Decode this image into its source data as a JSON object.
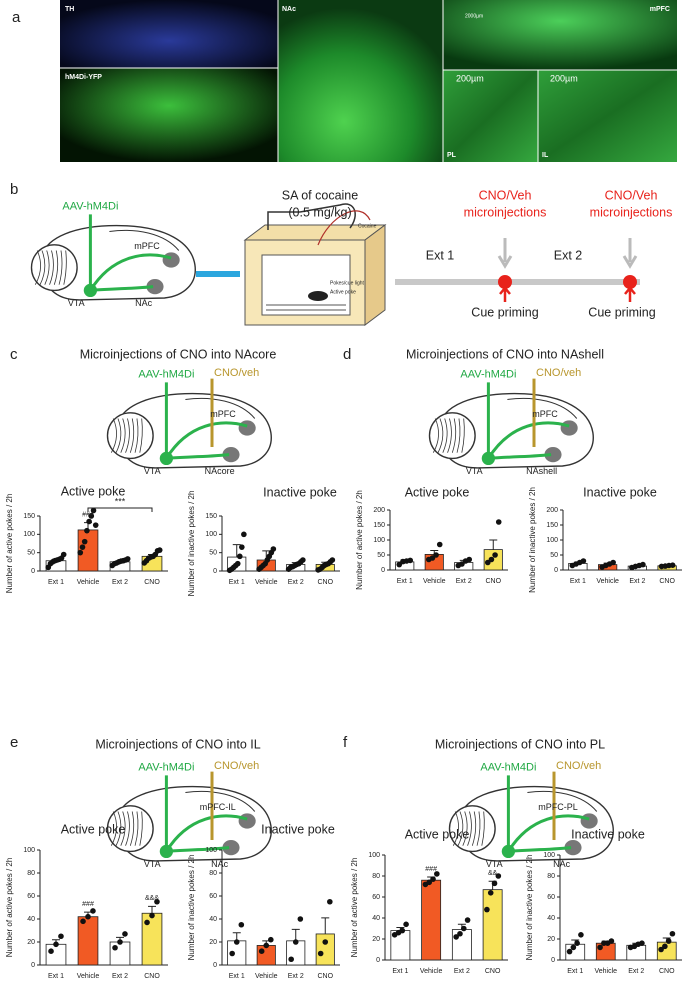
{
  "figure": {
    "panel_labels": [
      "a",
      "b",
      "c",
      "d",
      "e",
      "f"
    ],
    "images": [
      {
        "label": "TH"
      },
      {
        "label": "hM4Di-YFP"
      },
      {
        "label": "NAc"
      },
      {
        "label": "mPFC",
        "scale": "2000µm"
      },
      {
        "label": "PL",
        "scale": "200µm"
      },
      {
        "label": "IL",
        "scale": "200µm"
      }
    ],
    "schematic_b": {
      "virus": "AAV-hM4Di",
      "regions": [
        "mPFC",
        "VTA",
        "NAc"
      ],
      "sa_title": "SA of cocaine",
      "dose": "(0.5 mg/kg)",
      "cocaine": "Cocaine",
      "light": "Pokes/cue light",
      "active": "Active poke",
      "phases": [
        "Ext 1",
        "Ext 2"
      ],
      "injection": [
        "CNO/Veh",
        "microinjections"
      ],
      "cue": "Cue priming"
    },
    "panels": [
      {
        "title": "Microinjections of CNO into NAcore",
        "virus": "AAV-hM4Di",
        "drug": "CNO/veh",
        "regions": [
          "mPFC",
          "VTA",
          "NAcore"
        ]
      },
      {
        "title": "Microinjections of CNO into NAshell",
        "virus": "AAV-hM4Di",
        "drug": "CNO/veh",
        "regions": [
          "mPFC",
          "VTA",
          "NAshell"
        ]
      },
      {
        "title": "Microinjections of CNO into IL",
        "virus": "AAV-hM4Di",
        "drug": "CNO/veh",
        "regions": [
          "mPFC-IL",
          "VTA",
          "NAc"
        ]
      },
      {
        "title": "Microinjections of CNO into PL",
        "virus": "AAV-hM4Di",
        "drug": "CNO/veh",
        "regions": [
          "mPFC-PL",
          "VTA",
          "NAc"
        ]
      }
    ]
  },
  "chart_data": [
    {
      "type": "bar",
      "title": "Active poke",
      "y_label": "Number of active pokes / 2h",
      "categories": [
        "Ext 1",
        "Vehicle",
        "Ext 2",
        "CNO"
      ],
      "values": [
        28,
        112,
        25,
        40
      ],
      "errors": [
        4,
        20,
        2,
        5
      ],
      "colors": [
        "#ffffff",
        "#f15a24",
        "#ffffff",
        "#f7e35a"
      ],
      "points": [
        [
          10,
          20,
          25,
          28,
          30,
          32,
          35,
          45
        ],
        [
          50,
          65,
          80,
          110,
          135,
          150,
          165,
          125
        ],
        [
          15,
          20,
          22,
          25,
          27,
          28,
          30,
          33
        ],
        [
          22,
          28,
          35,
          38,
          40,
          45,
          55,
          57
        ]
      ],
      "annotations": [
        null,
        "###",
        null,
        null
      ],
      "comparison_label": "***",
      "ylim": [
        0,
        150
      ],
      "yticks": [
        0,
        50,
        100,
        150
      ]
    },
    {
      "type": "bar",
      "title": "Inactive poke",
      "y_label": "Number of inactive pokes / 2h",
      "categories": [
        "Ext 1",
        "Vehicle",
        "Ext 2",
        "CNO"
      ],
      "values": [
        38,
        30,
        18,
        18
      ],
      "errors": [
        34,
        25,
        5,
        6
      ],
      "colors": [
        "#ffffff",
        "#f15a24",
        "#ffffff",
        "#f7e35a"
      ],
      "points": [
        [
          2,
          5,
          10,
          15,
          20,
          40,
          65,
          100
        ],
        [
          5,
          10,
          15,
          20,
          30,
          40,
          50,
          60
        ],
        [
          5,
          10,
          12,
          15,
          18,
          20,
          25,
          30
        ],
        [
          3,
          5,
          10,
          15,
          18,
          20,
          25,
          30
        ]
      ],
      "ylim": [
        0,
        150
      ],
      "yticks": [
        0,
        50,
        100,
        150
      ]
    },
    {
      "type": "bar",
      "title": "Active poke",
      "y_label": "Number of active pokes / 2h",
      "categories": [
        "Ext 1",
        "Vehicle",
        "Ext 2",
        "CNO"
      ],
      "values": [
        27,
        52,
        25,
        68
      ],
      "errors": [
        7,
        13,
        7,
        32
      ],
      "colors": [
        "#ffffff",
        "#f15a24",
        "#ffffff",
        "#f7e35a"
      ],
      "points": [
        [
          18,
          28,
          30,
          32
        ],
        [
          35,
          40,
          50,
          85
        ],
        [
          15,
          20,
          30,
          35
        ],
        [
          25,
          35,
          50,
          160
        ]
      ],
      "ylim": [
        0,
        200
      ],
      "yticks": [
        0,
        50,
        100,
        150,
        200
      ]
    },
    {
      "type": "bar",
      "title": "Inactive poke",
      "y_label": "Number of inactive pokes / 2h",
      "categories": [
        "Ext 1",
        "Vehicle",
        "Ext 2",
        "CNO"
      ],
      "values": [
        22,
        18,
        13,
        14
      ],
      "errors": [
        4,
        5,
        3,
        2
      ],
      "colors": [
        "#ffffff",
        "#f15a24",
        "#ffffff",
        "#f7e35a"
      ],
      "points": [
        [
          15,
          20,
          25,
          30
        ],
        [
          10,
          15,
          20,
          25
        ],
        [
          8,
          12,
          15,
          18
        ],
        [
          12,
          13,
          15,
          16
        ]
      ],
      "ylim": [
        0,
        200
      ],
      "yticks": [
        0,
        50,
        100,
        150,
        200
      ]
    },
    {
      "type": "bar",
      "title": "Active poke",
      "y_label": "Number of active pokes / 2h",
      "categories": [
        "Ext 1",
        "Vehicle",
        "Ext 2",
        "CNO"
      ],
      "values": [
        18,
        42,
        20,
        45
      ],
      "errors": [
        4,
        4,
        4,
        6
      ],
      "colors": [
        "#ffffff",
        "#f15a24",
        "#ffffff",
        "#f7e35a"
      ],
      "points": [
        [
          12,
          18,
          25
        ],
        [
          38,
          42,
          47
        ],
        [
          15,
          20,
          27
        ],
        [
          37,
          43,
          55
        ]
      ],
      "annotations": [
        null,
        "###",
        null,
        "&&&"
      ],
      "ylim": [
        0,
        100
      ],
      "yticks": [
        0,
        20,
        40,
        60,
        80,
        100
      ]
    },
    {
      "type": "bar",
      "title": "Inactive poke",
      "y_label": "Number of inactive pokes / 2h",
      "categories": [
        "Ext 1",
        "Vehicle",
        "Ext 2",
        "CNO"
      ],
      "values": [
        21,
        17,
        21,
        27
      ],
      "errors": [
        7,
        4,
        10,
        14
      ],
      "colors": [
        "#ffffff",
        "#f15a24",
        "#ffffff",
        "#f7e35a"
      ],
      "points": [
        [
          10,
          20,
          35
        ],
        [
          12,
          17,
          22
        ],
        [
          5,
          20,
          40
        ],
        [
          10,
          20,
          55
        ]
      ],
      "ylim": [
        0,
        100
      ],
      "yticks": [
        0,
        20,
        40,
        60,
        80,
        100
      ]
    },
    {
      "type": "bar",
      "title": "Active poke",
      "y_label": "Number of active pokes / 2h",
      "categories": [
        "Ext 1",
        "Vehicle",
        "Ext 2",
        "CNO"
      ],
      "values": [
        28,
        76,
        29,
        67
      ],
      "errors": [
        3,
        3,
        5,
        8
      ],
      "colors": [
        "#ffffff",
        "#f15a24",
        "#ffffff",
        "#f7e35a"
      ],
      "points": [
        [
          24,
          26,
          28,
          34
        ],
        [
          72,
          74,
          77,
          82
        ],
        [
          22,
          25,
          30,
          38
        ],
        [
          48,
          64,
          73,
          80
        ]
      ],
      "annotations": [
        null,
        "###",
        null,
        "&&"
      ],
      "ylim": [
        0,
        100
      ],
      "yticks": [
        0,
        20,
        40,
        60,
        80,
        100
      ]
    },
    {
      "type": "bar",
      "title": "Inactive poke",
      "y_label": "Number of inactive pokes / 2h",
      "categories": [
        "Ext 1",
        "Vehicle",
        "Ext 2",
        "CNO"
      ],
      "values": [
        15,
        16,
        14,
        17
      ],
      "errors": [
        4,
        2,
        2,
        4
      ],
      "colors": [
        "#ffffff",
        "#f15a24",
        "#ffffff",
        "#f7e35a"
      ],
      "points": [
        [
          8,
          12,
          16,
          24
        ],
        [
          12,
          16,
          16,
          18
        ],
        [
          12,
          13,
          15,
          16
        ],
        [
          10,
          13,
          18,
          25
        ]
      ],
      "ylim": [
        0,
        100
      ],
      "yticks": [
        0,
        20,
        40,
        60,
        80,
        100
      ]
    }
  ]
}
